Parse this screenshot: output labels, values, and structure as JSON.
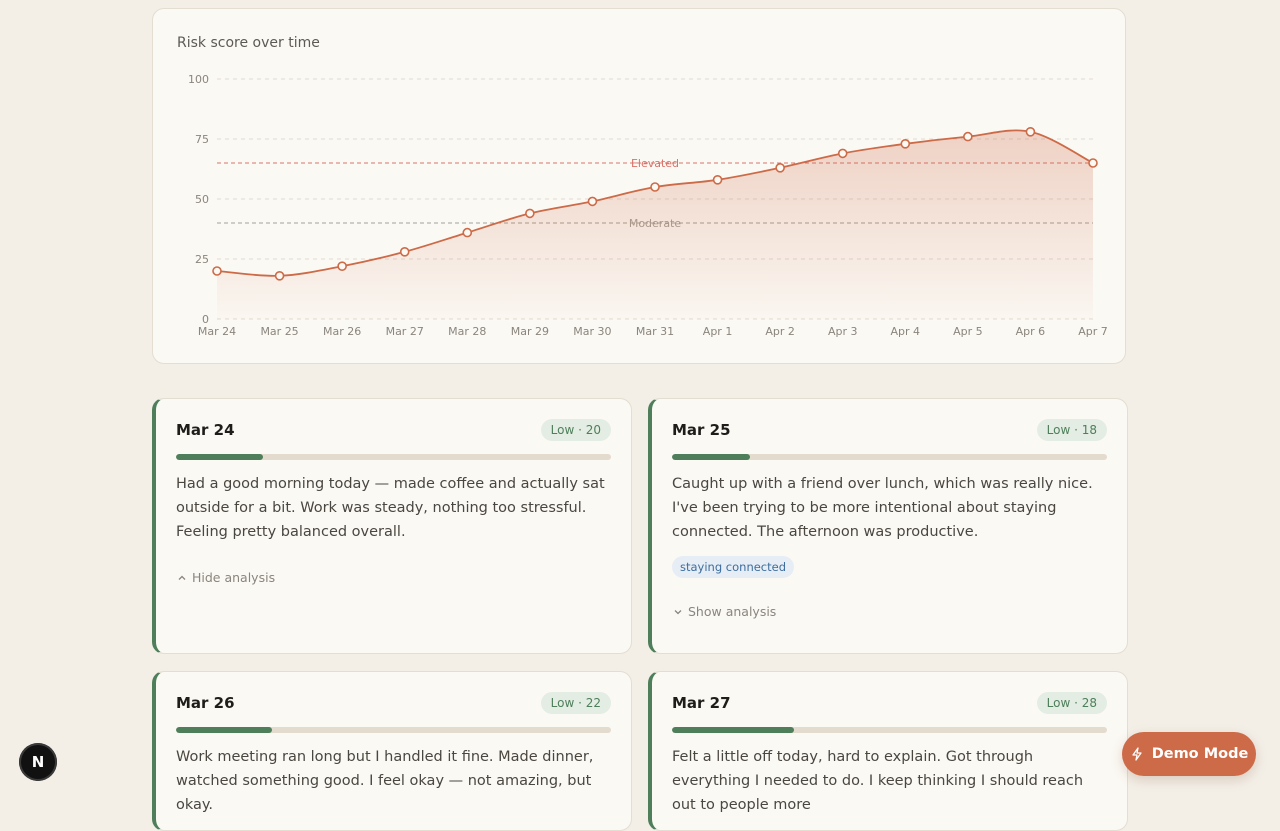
{
  "chart_data": {
    "type": "area",
    "title": "Risk score over time",
    "categories": [
      "Mar 24",
      "Mar 25",
      "Mar 26",
      "Mar 27",
      "Mar 28",
      "Mar 29",
      "Mar 30",
      "Mar 31",
      "Apr 1",
      "Apr 2",
      "Apr 3",
      "Apr 4",
      "Apr 5",
      "Apr 6",
      "Apr 7"
    ],
    "values": [
      20,
      18,
      22,
      28,
      36,
      44,
      49,
      55,
      58,
      63,
      69,
      73,
      76,
      78,
      65
    ],
    "ylim": [
      0,
      100
    ],
    "yticks": [
      0,
      25,
      50,
      75,
      100
    ],
    "reference_lines": [
      {
        "label": "Elevated",
        "value": 65,
        "color": "#d9736b"
      },
      {
        "label": "Moderate",
        "value": 40,
        "color": "#a49f97"
      }
    ],
    "line_color": "#cd6a47",
    "grid": true
  },
  "entries": [
    {
      "date": "Mar 24",
      "badge": "Low · 20",
      "score": 20,
      "text": "Had a good morning today — made coffee and actually sat outside for a bit. Work was steady, nothing too stressful. Feeling pretty balanced overall.",
      "toggle": "Hide analysis"
    },
    {
      "date": "Mar 25",
      "badge": "Low · 18",
      "score": 18,
      "text": "Caught up with a friend over lunch, which was really nice. I've been trying to be more intentional about staying connected. The afternoon was productive.",
      "tag": "staying connected",
      "toggle": "Show analysis"
    },
    {
      "date": "Mar 26",
      "badge": "Low · 22",
      "score": 22,
      "text": "Work meeting ran long but I handled it fine. Made dinner, watched something good. I feel okay — not amazing, but okay."
    },
    {
      "date": "Mar 27",
      "badge": "Low · 28",
      "score": 28,
      "text": "Felt a little off today, hard to explain. Got through everything I needed to do. I keep thinking I should reach out to people more"
    }
  ],
  "dev_badge": "N",
  "demo_button": "Demo Mode",
  "colors": {
    "accent": "#cd6a47",
    "low": "#4e7f5a"
  }
}
